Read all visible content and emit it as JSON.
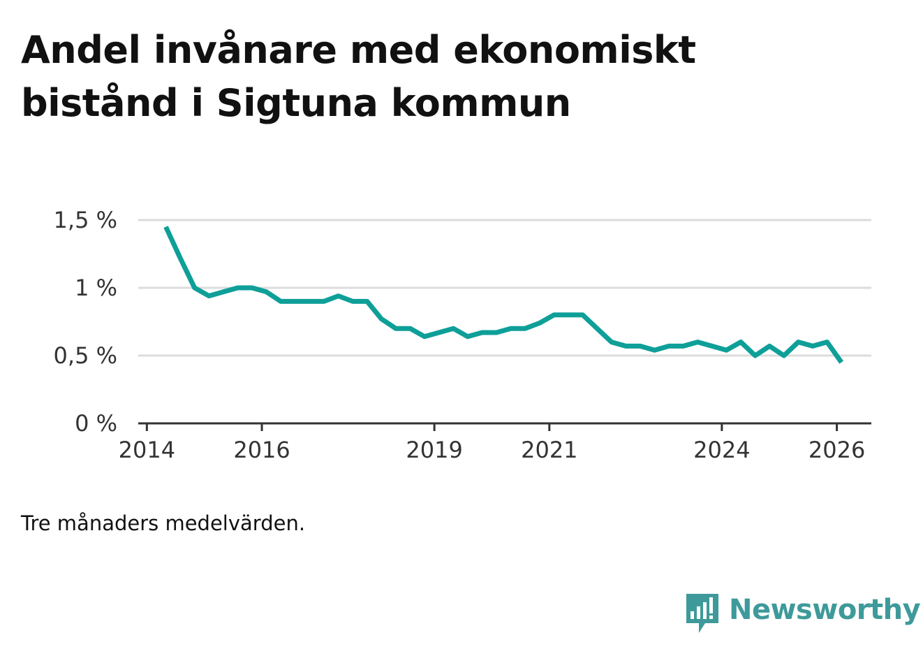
{
  "title_lines": [
    "Andel invånare med ekonomiskt",
    "bistånd i Sigtuna kommun"
  ],
  "note": "Tre månaders medelvärden.",
  "brand": {
    "name": "Newsworthy",
    "icon": "newsworthy-logo-icon",
    "color": "#3e9a9a"
  },
  "chart_data": {
    "type": "line",
    "title": "Andel invånare med ekonomiskt bistånd i Sigtuna kommun",
    "xlabel": "",
    "ylabel": "",
    "ylim": [
      0,
      1.5
    ],
    "xlim": [
      2013.85,
      2026.6
    ],
    "grid": true,
    "line_color": "#0e9f98",
    "yticks": [
      {
        "value": 0,
        "label": "0 %"
      },
      {
        "value": 0.5,
        "label": "0,5 %"
      },
      {
        "value": 1,
        "label": "1 %"
      },
      {
        "value": 1.5,
        "label": "1,5 %"
      }
    ],
    "xticks": [
      {
        "value": 2014,
        "label": "2014"
      },
      {
        "value": 2016,
        "label": "2016"
      },
      {
        "value": 2019,
        "label": "2019"
      },
      {
        "value": 2021,
        "label": "2021"
      },
      {
        "value": 2024,
        "label": "2024"
      },
      {
        "value": 2026,
        "label": "2026"
      }
    ],
    "series": [
      {
        "name": "Andel invånare med ekonomiskt bistånd",
        "x": [
          2014.33,
          2014.58,
          2014.83,
          2015.08,
          2015.33,
          2015.58,
          2015.83,
          2016.08,
          2016.33,
          2016.58,
          2016.83,
          2017.08,
          2017.33,
          2017.58,
          2017.83,
          2018.08,
          2018.33,
          2018.58,
          2018.83,
          2019.08,
          2019.33,
          2019.58,
          2019.83,
          2020.08,
          2020.33,
          2020.58,
          2020.83,
          2021.08,
          2021.33,
          2021.58,
          2021.83,
          2022.08,
          2022.33,
          2022.58,
          2022.83,
          2023.08,
          2023.33,
          2023.58,
          2023.83,
          2024.08,
          2024.33,
          2024.58,
          2024.83,
          2025.08,
          2025.33,
          2025.58,
          2025.83,
          2026.08
        ],
        "values": [
          1.45,
          1.22,
          1.0,
          0.94,
          0.97,
          1.0,
          1.0,
          0.97,
          0.9,
          0.9,
          0.9,
          0.9,
          0.94,
          0.9,
          0.9,
          0.77,
          0.7,
          0.7,
          0.64,
          0.67,
          0.7,
          0.64,
          0.67,
          0.67,
          0.7,
          0.7,
          0.74,
          0.8,
          0.8,
          0.8,
          0.7,
          0.6,
          0.57,
          0.57,
          0.54,
          0.57,
          0.57,
          0.6,
          0.57,
          0.54,
          0.6,
          0.5,
          0.57,
          0.5,
          0.6,
          0.57,
          0.6,
          0.45
        ]
      }
    ]
  }
}
